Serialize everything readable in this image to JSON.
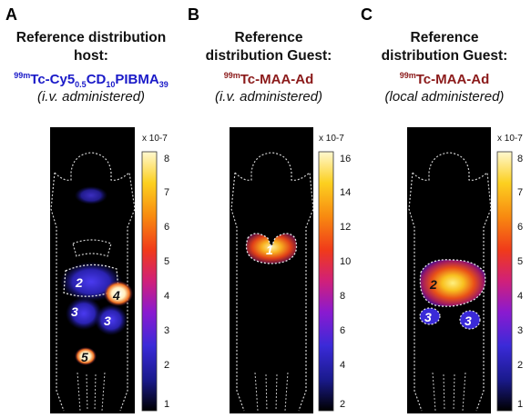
{
  "panels": [
    {
      "letter": "A",
      "heading_line1": "Reference distribution",
      "heading_line2": "host:",
      "tracer_prefix": "99m",
      "tracer_a": "Tc-Cy5",
      "tracer_sub1": "0.5",
      "tracer_b": "CD",
      "tracer_sub2": "10",
      "tracer_c": "PIBMA",
      "tracer_sub3": "39",
      "tracer_color": "#1a1ac8",
      "administration": "(i.v. administered)",
      "scale_label": "x 10-7",
      "ticks": [
        "8",
        "7",
        "6",
        "5",
        "4",
        "3",
        "2",
        "1"
      ],
      "region_labels": [
        "2",
        "4",
        "3",
        "3",
        "5"
      ]
    },
    {
      "letter": "B",
      "heading_line1": "Reference",
      "heading_line2": "distribution Guest:",
      "tracer_prefix": "99m",
      "tracer_a": "Tc-MAA-Ad",
      "tracer_color": "#8b1a1a",
      "administration": "(i.v. administered)",
      "scale_label": "x 10-7",
      "ticks": [
        "16",
        "14",
        "12",
        "10",
        "8",
        "6",
        "4",
        "2"
      ],
      "region_labels": [
        "1"
      ]
    },
    {
      "letter": "C",
      "heading_line1": "Reference",
      "heading_line2": "distribution Guest:",
      "tracer_prefix": "99m",
      "tracer_a": "Tc-MAA-Ad",
      "tracer_color": "#8b1a1a",
      "administration": "(local administered)",
      "scale_label": "x 10-7",
      "ticks": [
        "8",
        "7",
        "6",
        "5",
        "4",
        "3",
        "2",
        "1"
      ],
      "region_labels": [
        "2",
        "3",
        "3"
      ]
    }
  ],
  "colormap": [
    "#000000",
    "#1a1a8c",
    "#3a2ad8",
    "#8a1ad0",
    "#d0207a",
    "#f03a1a",
    "#f88a10",
    "#fcd020",
    "#fff8d0"
  ]
}
